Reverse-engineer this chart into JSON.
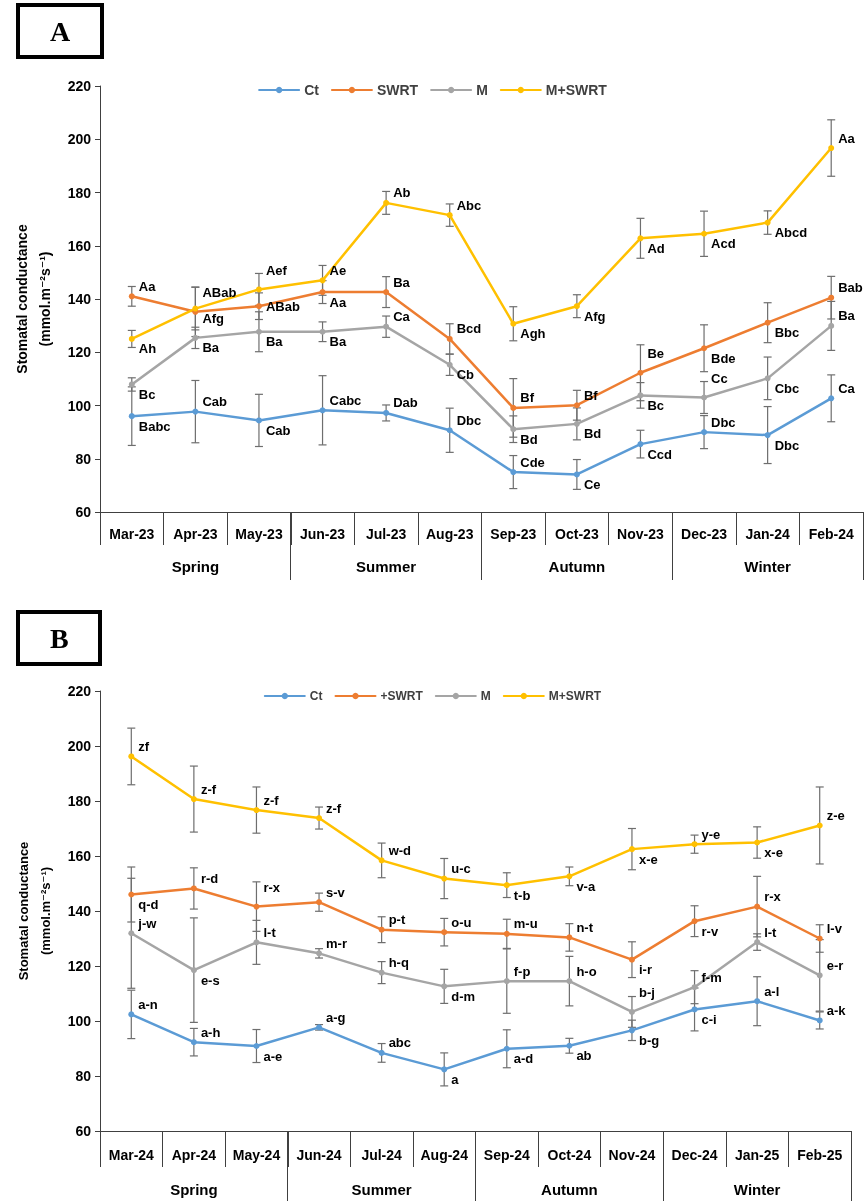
{
  "chart_data": [
    {
      "type": "line",
      "title": "A",
      "ylabel": "Stomatal conductance (mmol.m⁻²s⁻¹)",
      "categories": [
        "Mar-23",
        "Apr-23",
        "May-23",
        "Jun-23",
        "Jul-23",
        "Aug-23",
        "Sep-23",
        "Oct-23",
        "Nov-23",
        "Dec-23",
        "Jan-24",
        "Feb-24"
      ],
      "ylim": [
        60,
        220
      ],
      "yticks": [
        60,
        80,
        100,
        120,
        140,
        160,
        180,
        200,
        220
      ],
      "legend": "top",
      "marker": "circle",
      "annotations": [
        "Spring",
        "Summer",
        "Autumn",
        "Winter"
      ],
      "series": [
        {
          "name": "Ct",
          "color": "#5b9bd5",
          "values": [
            96.0,
            97.7,
            94.4,
            98.2,
            97.2,
            90.7,
            75.0,
            74.1,
            85.5,
            90.0,
            88.9,
            102.7
          ],
          "errors": [
            11,
            11.7,
            9.8,
            13,
            3,
            8.3,
            6.2,
            5.6,
            5.2,
            6.2,
            10.7,
            8.8
          ],
          "value_labels": [
            "Babc",
            "Cab",
            "Cab",
            "Cabc",
            "Dab",
            "Dbc",
            "Cde",
            "Ce",
            "Ccd",
            "Dbc",
            "Dbc",
            "Ca"
          ]
        },
        {
          "name": "SWRT",
          "color": "#ed7d31",
          "values": [
            141.0,
            135.2,
            137.3,
            142.6,
            142.6,
            125.0,
            99.1,
            100.1,
            112.3,
            121.5,
            131.1,
            140.5
          ],
          "errors": [
            3.7,
            9.3,
            5,
            4.3,
            5.8,
            5.7,
            11,
            5.6,
            10.5,
            8.8,
            7.5,
            8
          ],
          "value_labels": [
            "Aa",
            "ABab",
            "ABab",
            "Aa",
            "Ba",
            "Bcd",
            "Bf",
            "Bf",
            "Be",
            "Bde",
            "Bbc",
            "Bab"
          ]
        },
        {
          "name": "M",
          "color": "#a5a5a5",
          "values": [
            107.9,
            125.4,
            127.7,
            127.7,
            129.6,
            115.3,
            91.1,
            93.1,
            103.8,
            103.0,
            110.2,
            129.9
          ],
          "errors": [
            2.5,
            4,
            7.5,
            3.7,
            4,
            4,
            5,
            6,
            4.8,
            6,
            8,
            9.2
          ],
          "value_labels": [
            "Bc",
            "Ba",
            "Ba",
            "Ba",
            "Ca",
            "Cb",
            "Bd",
            "Bd",
            "Bc",
            "Cc",
            "Cbc",
            "Ba"
          ]
        },
        {
          "name": "M+SWRT",
          "color": "#ffc000",
          "values": [
            125.0,
            136.4,
            143.6,
            147.0,
            176.1,
            171.5,
            130.7,
            137.3,
            162.8,
            164.5,
            168.7,
            196.7
          ],
          "errors": [
            3.2,
            8,
            6,
            5.6,
            4.3,
            4.2,
            6.4,
            4.3,
            7.5,
            8.5,
            4.4,
            10.6
          ],
          "value_labels": [
            "Ah",
            "Afg",
            "Aef",
            "Ae",
            "Ab",
            "Abc",
            "Agh",
            "Afg",
            "Ad",
            "Acd",
            "Abcd",
            "Aa"
          ]
        }
      ]
    },
    {
      "type": "line",
      "title": "B",
      "ylabel": "Stomatal conductance (mmol.m⁻²s⁻¹)",
      "categories": [
        "Mar-24",
        "Apr-24",
        "May-24",
        "Jun-24",
        "Jul-24",
        "Aug-24",
        "Sep-24",
        "Oct-24",
        "Nov-24",
        "Dec-24",
        "Jan-25",
        "Feb-25"
      ],
      "ylim": [
        60,
        220
      ],
      "yticks": [
        60,
        80,
        100,
        120,
        140,
        160,
        180,
        200,
        220
      ],
      "legend": "top",
      "marker": "circle",
      "annotations": [
        "Spring",
        "Summer",
        "Autumn",
        "Winter"
      ],
      "series": [
        {
          "name": "Ct",
          "color": "#5b9bd5",
          "values": [
            102.4,
            92.3,
            90.9,
            97.7,
            88.4,
            82.4,
            89.9,
            91.0,
            96.6,
            104.2,
            107.2,
            100.2
          ],
          "errors": [
            8.8,
            5,
            6,
            1,
            3.4,
            6,
            6.9,
            2.7,
            3.7,
            7.8,
            8.9,
            3.1
          ],
          "value_labels": [
            "a-n",
            "a-h",
            "a-e",
            "a-g",
            "abc",
            "a",
            "a-d",
            "ab",
            "b-g",
            "c-i",
            "a-l",
            "a-k"
          ]
        },
        {
          "name": "+SWRT",
          "color": "#ed7d31",
          "values": [
            146.0,
            148.2,
            141.6,
            143.2,
            133.2,
            132.3,
            131.7,
            130.4,
            122.3,
            136.3,
            141.6,
            130.0
          ],
          "errors": [
            10,
            7.5,
            9,
            3.3,
            4.7,
            5,
            5.3,
            5,
            6.5,
            5.6,
            11,
            5
          ],
          "value_labels": [
            "q-d",
            "r-d",
            "r-x",
            "s-v",
            "p-t",
            "o-u",
            "m-u",
            "n-t",
            "i-r",
            "r-v",
            "r-x",
            "l-v"
          ]
        },
        {
          "name": "M",
          "color": "#a5a5a5",
          "values": [
            131.9,
            118.5,
            128.6,
            124.6,
            117.6,
            112.6,
            114.5,
            114.5,
            103.3,
            112.3,
            128.7,
            116.6
          ],
          "errors": [
            20,
            19,
            8,
            1.7,
            4,
            6.2,
            11.7,
            9,
            5.6,
            6,
            3,
            13
          ],
          "value_labels": [
            "j-w",
            "e-s",
            "l-t",
            "m-r",
            "h-q",
            "d-m",
            "f-p",
            "h-o",
            "b-j",
            "f-m",
            "l-t",
            "e-r"
          ]
        },
        {
          "name": "M+SWRT",
          "color": "#ffc000",
          "values": [
            196.2,
            180.7,
            176.7,
            173.8,
            158.4,
            151.8,
            149.4,
            152.6,
            162.5,
            164.3,
            164.9,
            171.1
          ],
          "errors": [
            10.3,
            12,
            8.4,
            4,
            6.3,
            7.3,
            4.5,
            3.4,
            7.5,
            3.3,
            5.7,
            14
          ],
          "value_labels": [
            "zf",
            "z-f",
            "z-f",
            "z-f",
            "w-d",
            "u-c",
            "t-b",
            "v-a",
            "x-e",
            "y-e",
            "x-e",
            "z-e"
          ]
        }
      ]
    }
  ]
}
